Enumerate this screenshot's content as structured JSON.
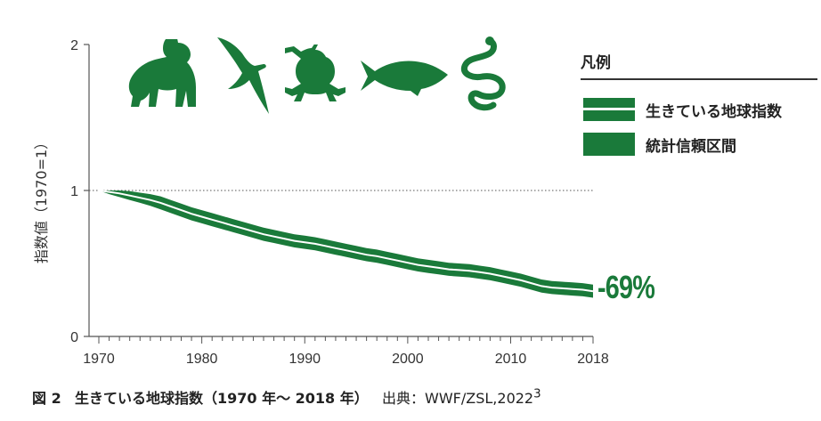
{
  "chart_data": {
    "type": "area",
    "x": [
      1970,
      1971,
      1972,
      1973,
      1974,
      1975,
      1976,
      1977,
      1978,
      1979,
      1980,
      1981,
      1982,
      1983,
      1984,
      1985,
      1986,
      1987,
      1988,
      1989,
      1990,
      1991,
      1992,
      1993,
      1994,
      1995,
      1996,
      1997,
      1998,
      1999,
      2000,
      2001,
      2002,
      2003,
      2004,
      2005,
      2006,
      2007,
      2008,
      2009,
      2010,
      2011,
      2012,
      2013,
      2014,
      2015,
      2016,
      2017,
      2018
    ],
    "series": [
      {
        "name": "生きている地球指数",
        "values": [
          1.0,
          0.99,
          0.98,
          0.965,
          0.95,
          0.935,
          0.915,
          0.89,
          0.865,
          0.84,
          0.82,
          0.8,
          0.78,
          0.76,
          0.74,
          0.72,
          0.7,
          0.685,
          0.67,
          0.655,
          0.645,
          0.635,
          0.62,
          0.605,
          0.59,
          0.575,
          0.56,
          0.55,
          0.535,
          0.52,
          0.505,
          0.49,
          0.48,
          0.47,
          0.46,
          0.455,
          0.45,
          0.44,
          0.43,
          0.415,
          0.4,
          0.385,
          0.365,
          0.345,
          0.335,
          0.33,
          0.325,
          0.32,
          0.31
        ]
      },
      {
        "name": "統計信頼区間",
        "lower": [
          1.0,
          0.975,
          0.955,
          0.935,
          0.915,
          0.895,
          0.87,
          0.845,
          0.82,
          0.795,
          0.775,
          0.755,
          0.735,
          0.715,
          0.695,
          0.675,
          0.655,
          0.64,
          0.625,
          0.61,
          0.6,
          0.59,
          0.575,
          0.56,
          0.545,
          0.53,
          0.515,
          0.505,
          0.49,
          0.475,
          0.46,
          0.445,
          0.435,
          0.425,
          0.415,
          0.41,
          0.405,
          0.395,
          0.385,
          0.37,
          0.355,
          0.34,
          0.32,
          0.3,
          0.29,
          0.285,
          0.28,
          0.275,
          0.265
        ],
        "upper": [
          1.0,
          1.0,
          1.0,
          0.995,
          0.985,
          0.975,
          0.96,
          0.935,
          0.91,
          0.885,
          0.865,
          0.845,
          0.825,
          0.805,
          0.785,
          0.765,
          0.745,
          0.73,
          0.715,
          0.7,
          0.69,
          0.68,
          0.665,
          0.65,
          0.635,
          0.62,
          0.605,
          0.595,
          0.58,
          0.565,
          0.55,
          0.535,
          0.525,
          0.515,
          0.505,
          0.5,
          0.495,
          0.485,
          0.475,
          0.46,
          0.445,
          0.43,
          0.41,
          0.39,
          0.38,
          0.375,
          0.37,
          0.365,
          0.355
        ]
      }
    ],
    "ylabel": "指数値（1970=1）",
    "ylim": [
      0,
      2
    ],
    "yticks": [
      "0",
      "1",
      "2"
    ],
    "xticks": [
      "1970",
      "1980",
      "1990",
      "2000",
      "2010",
      "2018"
    ],
    "xtick_values": [
      1970,
      1980,
      1990,
      2000,
      2010,
      2018
    ],
    "reference_line": 1,
    "annotation": "-69%",
    "colors": {
      "band": "#1a7a3a",
      "line": "#ffffff",
      "axis": "#555555"
    }
  },
  "legend": {
    "title": "凡例",
    "items": [
      {
        "label": "生きている地球指数",
        "type": "line-in-band"
      },
      {
        "label": "統計信頼区間",
        "type": "band"
      }
    ]
  },
  "icons": [
    "gorilla-icon",
    "albatross-icon",
    "frog-icon",
    "fish-icon",
    "snake-icon"
  ],
  "caption": {
    "figure": "図 2",
    "title": "生きている地球指数（1970 年～ 2018 年）",
    "source": "出典：WWF/ZSL,2022",
    "superscript": "3"
  }
}
